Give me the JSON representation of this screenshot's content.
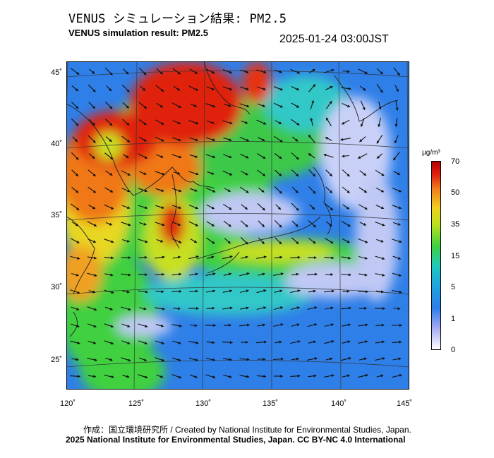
{
  "header": {
    "title_jp": "VENUS シミュレーション結果: PM2.5",
    "title_en": "VENUS simulation result: PM2.5",
    "timestamp": "2025-01-24 03:00JST"
  },
  "map": {
    "lat_labels": [
      "45˚",
      "40˚",
      "35˚",
      "30˚",
      "25˚"
    ],
    "lon_labels": [
      "120˚",
      "125˚",
      "130˚",
      "135˚",
      "140˚",
      "145˚"
    ],
    "lat_values": [
      45,
      40,
      35,
      30,
      25
    ],
    "lon_values": [
      120,
      125,
      130,
      135,
      140,
      145
    ]
  },
  "colorbar": {
    "unit": "µg/m³",
    "ticks": [
      "70",
      "50",
      "35",
      "15",
      "5",
      "1",
      "0"
    ],
    "colors": [
      "#ffffff",
      "#9fa8f0",
      "#2f7fe8",
      "#20c8c0",
      "#40d040",
      "#b8e020",
      "#f0d020",
      "#f08020",
      "#e02010",
      "#b00000"
    ]
  },
  "footer": {
    "credit": "作成：国立環境研究所 / Created by National Institute for Environmental Studies, Japan.",
    "copyright": "2025 National Institute for Environmental Studies, Japan. CC BY-NC 4.0 International"
  }
}
